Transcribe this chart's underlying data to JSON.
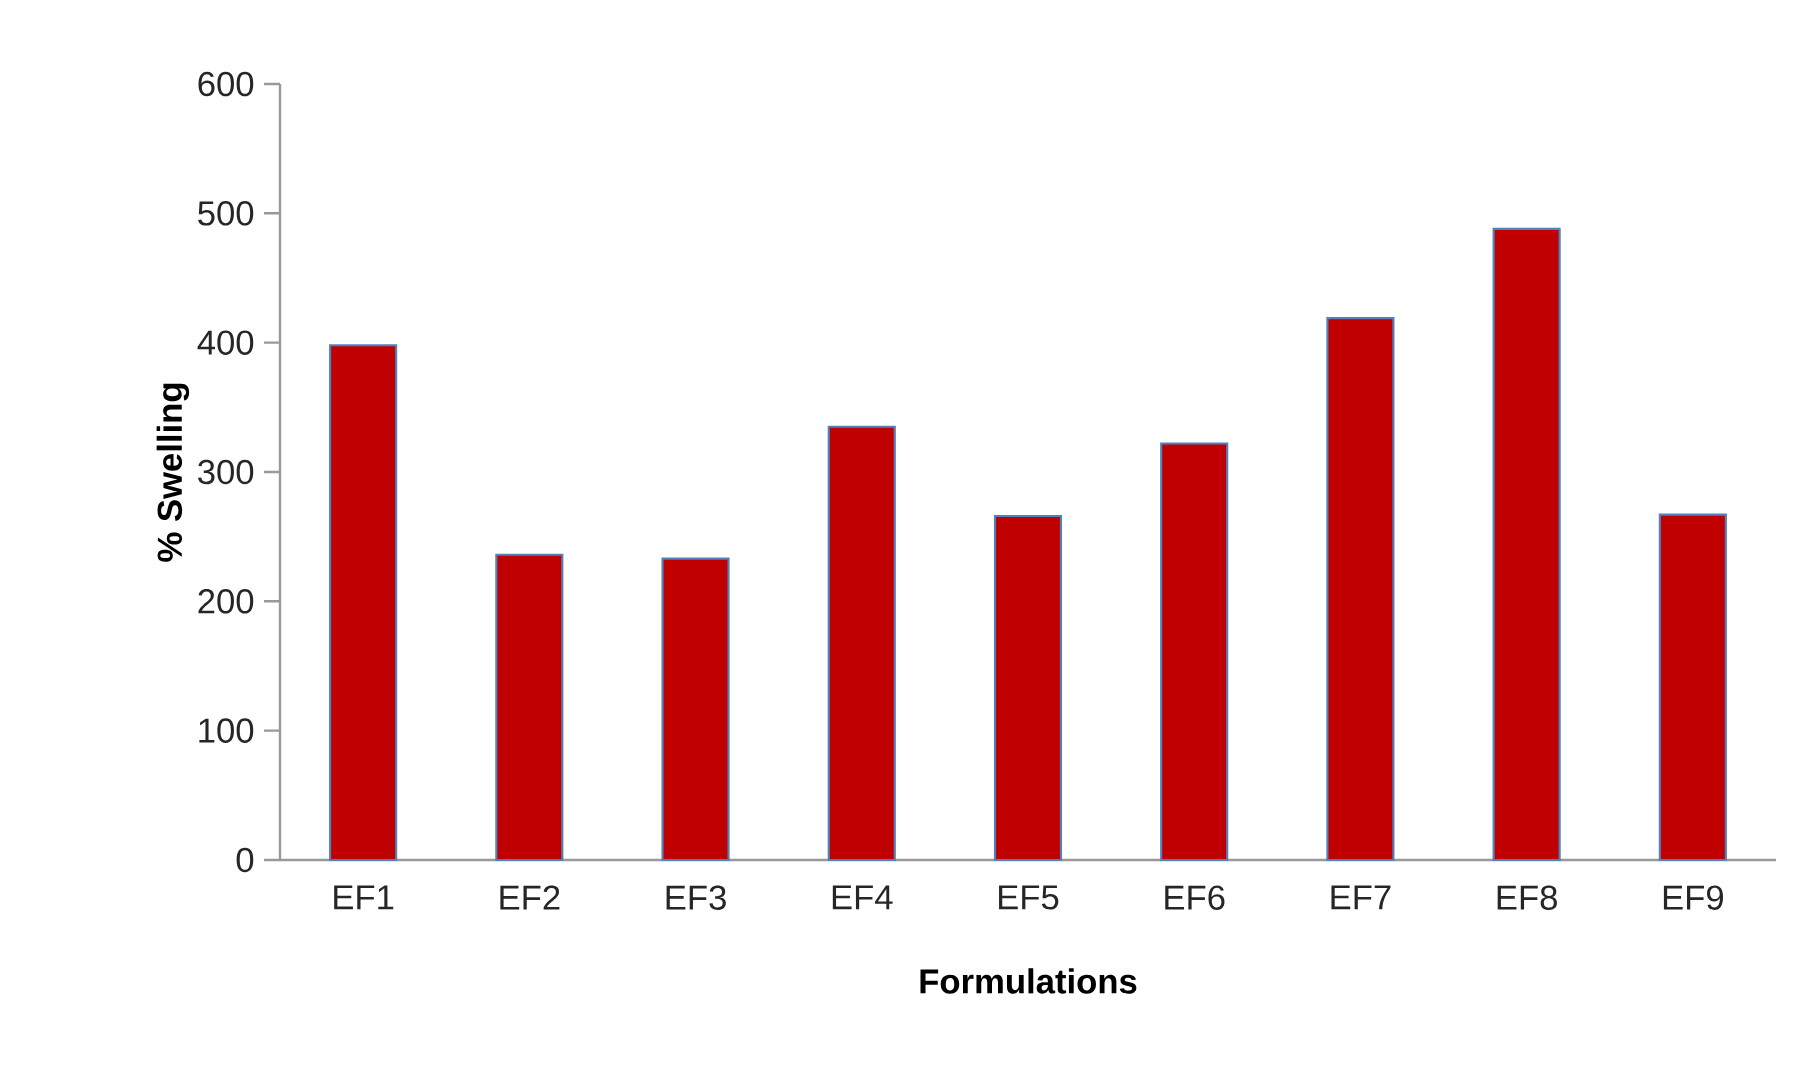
{
  "chart_data": {
    "type": "bar",
    "xlabel": "Formulations",
    "ylabel": "% Swelling",
    "categories": [
      "EF1",
      "EF2",
      "EF3",
      "EF4",
      "EF5",
      "EF6",
      "EF7",
      "EF8",
      "EF9"
    ],
    "values": [
      398,
      236,
      233,
      335,
      266,
      322,
      419,
      488,
      267
    ],
    "color": "#c00000",
    "ylim": [
      0,
      600
    ],
    "yticks": [
      0,
      100,
      200,
      300,
      400,
      500,
      600
    ]
  }
}
